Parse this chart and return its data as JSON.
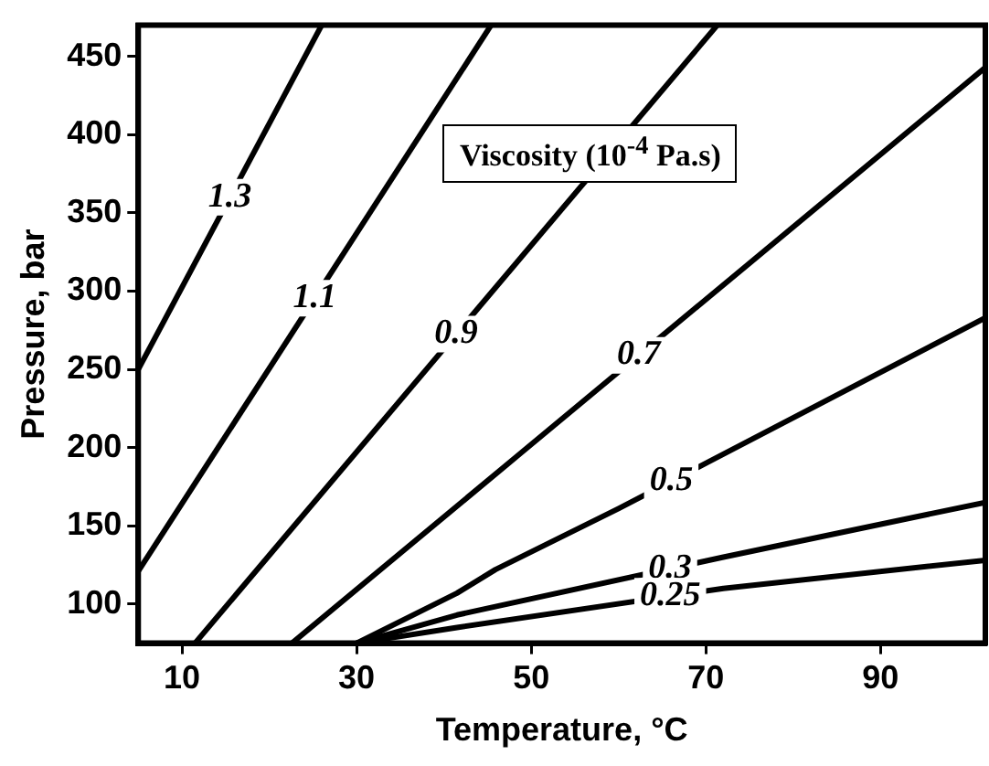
{
  "chart_data": {
    "type": "line",
    "title": "Viscosity (10$^{-4}$ Pa.s)",
    "xlabel": "Temperature, °C",
    "ylabel": "Pressure, bar",
    "xlim": [
      5,
      102
    ],
    "ylim": [
      75,
      470
    ],
    "xticks": [
      10,
      30,
      50,
      70,
      90
    ],
    "yticks": [
      100,
      150,
      200,
      250,
      300,
      350,
      400,
      450
    ],
    "grid": false,
    "legend": false,
    "marker": "none",
    "line_style": "solid",
    "series": [
      {
        "name": "1.3",
        "color": "#000000",
        "x": [
          5,
          26
        ],
        "values": [
          250,
          470
        ]
      },
      {
        "name": "1.1",
        "color": "#000000",
        "x": [
          5,
          45.4
        ],
        "values": [
          121,
          470
        ]
      },
      {
        "name": "0.9",
        "color": "#000000",
        "x": [
          11.5,
          71.3
        ],
        "values": [
          75,
          470
        ]
      },
      {
        "name": "0.7",
        "color": "#000000",
        "x": [
          22.6,
          48.7,
          102
        ],
        "values": [
          75,
          196,
          443
        ]
      },
      {
        "name": "0.5",
        "color": "#000000",
        "x": [
          30,
          41.5,
          45.9,
          60,
          102
        ],
        "values": [
          75,
          107,
          122,
          161,
          283
        ]
      },
      {
        "name": "0.3",
        "color": "#000000",
        "x": [
          30,
          41.5,
          72,
          102
        ],
        "values": [
          75,
          93,
          130,
          165
        ]
      },
      {
        "name": "0.25",
        "color": "#000000",
        "x": [
          30,
          41.5,
          72,
          102
        ],
        "values": [
          75,
          85,
          110,
          128
        ]
      }
    ]
  }
}
